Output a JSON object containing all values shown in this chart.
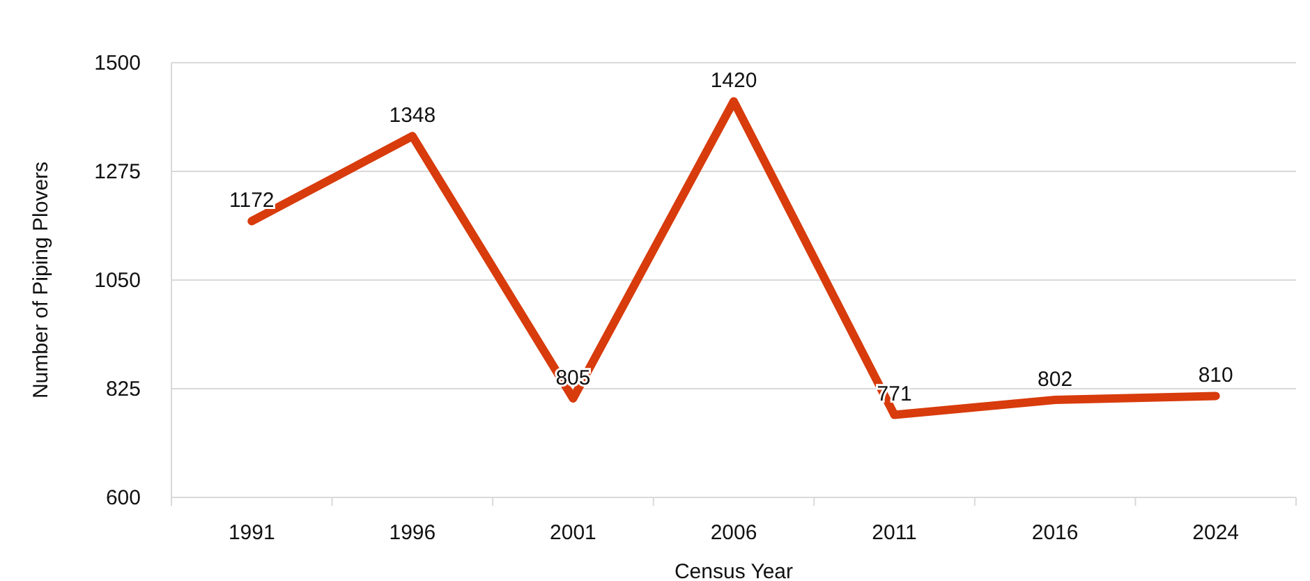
{
  "chart_data": {
    "type": "line",
    "xlabel": "Census Year",
    "ylabel": "Number of Piping Plovers",
    "categories": [
      "1991",
      "1996",
      "2001",
      "2006",
      "2011",
      "2016",
      "2024"
    ],
    "series": [
      {
        "color": "#d83b0c",
        "values": [
          1172,
          1348,
          805,
          1420,
          771,
          802,
          810
        ]
      }
    ],
    "ylim": [
      600,
      1500
    ],
    "yticks": [
      600,
      825,
      1050,
      1275,
      1500
    ],
    "grid": "y",
    "data_labels": true,
    "marker": "none",
    "line_style": "solid"
  }
}
